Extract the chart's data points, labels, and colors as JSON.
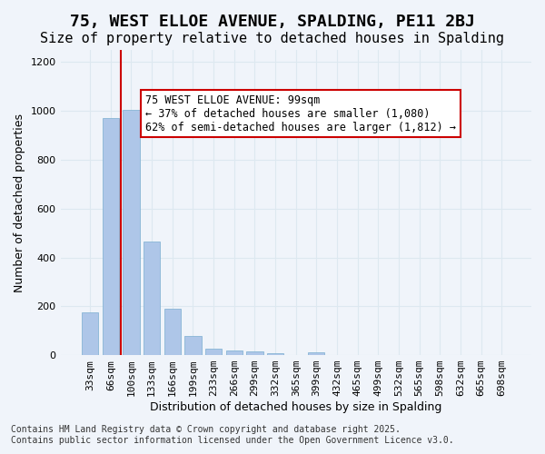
{
  "title_line1": "75, WEST ELLOE AVENUE, SPALDING, PE11 2BJ",
  "title_line2": "Size of property relative to detached houses in Spalding",
  "xlabel": "Distribution of detached houses by size in Spalding",
  "ylabel": "Number of detached properties",
  "categories": [
    "33sqm",
    "66sqm",
    "100sqm",
    "133sqm",
    "166sqm",
    "199sqm",
    "233sqm",
    "266sqm",
    "299sqm",
    "332sqm",
    "365sqm",
    "399sqm",
    "432sqm",
    "465sqm",
    "499sqm",
    "532sqm",
    "565sqm",
    "598sqm",
    "632sqm",
    "665sqm",
    "698sqm"
  ],
  "values": [
    175,
    970,
    1005,
    465,
    190,
    80,
    27,
    20,
    15,
    8,
    0,
    12,
    0,
    0,
    0,
    0,
    0,
    0,
    0,
    0,
    0
  ],
  "bar_color": "#aec6e8",
  "bar_edge_color": "#7aaed0",
  "red_line_x": 1.5,
  "annotation_text": "75 WEST ELLOE AVENUE: 99sqm\n← 37% of detached houses are smaller (1,080)\n62% of semi-detached houses are larger (1,812) →",
  "annotation_box_color": "#ffffff",
  "annotation_box_edge_color": "#cc0000",
  "grid_color": "#dde8f0",
  "background_color": "#f0f4fa",
  "ylim": [
    0,
    1250
  ],
  "yticks": [
    0,
    200,
    400,
    600,
    800,
    1000,
    1200
  ],
  "footer_line1": "Contains HM Land Registry data © Crown copyright and database right 2025.",
  "footer_line2": "Contains public sector information licensed under the Open Government Licence v3.0.",
  "title_fontsize": 13,
  "subtitle_fontsize": 11,
  "axis_label_fontsize": 9,
  "tick_fontsize": 8,
  "annotation_fontsize": 8.5,
  "footer_fontsize": 7
}
